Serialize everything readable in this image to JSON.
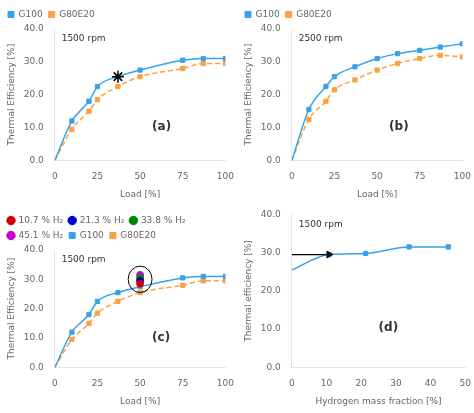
{
  "chart_data": [
    {
      "type": "line",
      "x_label": "Load [%]",
      "y_label": "Thermal Efficiency [%]",
      "annotations": [
        "1500 rpm",
        "(a)"
      ],
      "xlim": [
        0,
        100
      ],
      "xticks": [
        0,
        25,
        50,
        75,
        100
      ],
      "ylim": [
        0,
        40
      ],
      "yticks": [
        {
          "value": 0,
          "label": "0.0"
        },
        {
          "value": 10.0,
          "label": "10.0"
        },
        {
          "value": 20.0,
          "label": "20.0"
        },
        {
          "value": 30.0,
          "label": "30.0"
        },
        {
          "value": 40.0,
          "label": "40.0"
        }
      ],
      "grid": false,
      "legend": "upper left",
      "series": [
        {
          "name": "G100",
          "color": "#36a2eb",
          "line_style": "solid",
          "marker": "square",
          "x": [
            0,
            10,
            20,
            25,
            37,
            50,
            75,
            87,
            100
          ],
          "values": [
            0.0,
            12.0,
            18.0,
            22.5,
            25.5,
            27.5,
            30.5,
            31.0,
            31.0
          ],
          "marker_x": [
            10,
            20,
            25,
            37,
            50,
            75,
            87,
            100
          ],
          "marker_values": [
            12.0,
            18.0,
            22.5,
            25.5,
            27.5,
            30.5,
            31.0,
            31.0
          ]
        },
        {
          "name": "G80E20",
          "color": "#ff9f40",
          "line_style": "dashed",
          "marker": "square",
          "x": [
            0,
            10,
            20,
            25,
            37,
            50,
            75,
            87,
            100
          ],
          "values": [
            0.0,
            9.5,
            15.0,
            18.5,
            22.5,
            25.5,
            28.0,
            29.5,
            29.5
          ],
          "marker_x": [
            10,
            20,
            25,
            37,
            50,
            75,
            87,
            100
          ],
          "marker_values": [
            9.5,
            15.0,
            18.5,
            22.5,
            25.5,
            28.0,
            29.5,
            29.5
          ]
        }
      ],
      "cross": {
        "x": 37,
        "y": 25.5,
        "marker": "star",
        "color": "#000000"
      }
    },
    {
      "type": "line",
      "x_label": "Load [%]",
      "y_label": "Thermal Efficiency [%]",
      "annotations": [
        "2500 rpm",
        "(b)"
      ],
      "xlim": [
        0,
        100
      ],
      "xticks": [
        0,
        25,
        50,
        75,
        100
      ],
      "ylim": [
        0,
        40
      ],
      "yticks": [
        {
          "value": 0,
          "label": "0.0"
        },
        {
          "value": 10.0,
          "label": "10.0"
        },
        {
          "value": 20.0,
          "label": "20.0"
        },
        {
          "value": 30.0,
          "label": "30.0"
        },
        {
          "value": 40.0,
          "label": "40.0"
        }
      ],
      "grid": false,
      "legend": "upper left",
      "series": [
        {
          "name": "G100",
          "color": "#36a2eb",
          "line_style": "solid",
          "marker": "square",
          "x": [
            0,
            10,
            20,
            25,
            37,
            50,
            62,
            75,
            87,
            100
          ],
          "values": [
            0.0,
            15.5,
            22.5,
            25.5,
            28.5,
            31.0,
            32.5,
            33.5,
            34.5,
            35.5
          ],
          "marker_x": [
            10,
            20,
            25,
            37,
            50,
            62,
            75,
            87,
            100
          ],
          "marker_values": [
            15.5,
            22.5,
            25.5,
            28.5,
            31.0,
            32.5,
            33.5,
            34.5,
            35.5
          ]
        },
        {
          "name": "G80E20",
          "color": "#ff9f40",
          "line_style": "dashed",
          "marker": "square",
          "x": [
            0,
            10,
            20,
            25,
            37,
            50,
            62,
            75,
            87,
            100
          ],
          "values": [
            0.0,
            12.5,
            18.0,
            21.5,
            24.5,
            27.5,
            29.5,
            31.0,
            32.0,
            31.5
          ],
          "marker_x": [
            10,
            20,
            25,
            37,
            50,
            62,
            75,
            87,
            100
          ],
          "marker_values": [
            12.5,
            18.0,
            21.5,
            24.5,
            27.5,
            29.5,
            31.0,
            32.0,
            31.5
          ]
        }
      ]
    },
    {
      "type": "line",
      "x_label": "Load [%]",
      "y_label": "Thermal Efficiency [%]",
      "annotations": [
        "1500 rpm",
        "(c)"
      ],
      "xlim": [
        0,
        100
      ],
      "xticks": [
        0,
        25,
        50,
        75,
        100
      ],
      "ylim": [
        0,
        40
      ],
      "yticks": [
        {
          "value": 0,
          "label": "0.0"
        },
        {
          "value": 10.0,
          "label": "10.0"
        },
        {
          "value": 20.0,
          "label": "20.0"
        },
        {
          "value": 30.0,
          "label": "30.0"
        },
        {
          "value": 40.0,
          "label": "40.0"
        }
      ],
      "grid": false,
      "legend": "upper left",
      "series": [
        {
          "name": "G100",
          "color": "#36a2eb",
          "line_style": "solid",
          "marker": "square",
          "x": [
            0,
            10,
            20,
            25,
            37,
            50,
            75,
            87,
            100
          ],
          "values": [
            0.0,
            12.0,
            18.0,
            22.5,
            25.5,
            27.5,
            30.5,
            31.0,
            31.0
          ],
          "marker_x": [
            10,
            20,
            25,
            37,
            50,
            75,
            87,
            100
          ],
          "marker_values": [
            12.0,
            18.0,
            22.5,
            25.5,
            27.5,
            30.5,
            31.0,
            31.0
          ]
        },
        {
          "name": "G80E20",
          "color": "#ff9f40",
          "line_style": "dashed",
          "marker": "square",
          "x": [
            0,
            10,
            20,
            25,
            37,
            50,
            75,
            87,
            100
          ],
          "values": [
            0.0,
            9.5,
            15.0,
            18.5,
            22.5,
            25.5,
            28.0,
            29.5,
            29.5
          ],
          "marker_x": [
            10,
            20,
            25,
            37,
            50,
            75,
            87,
            100
          ],
          "marker_values": [
            9.5,
            15.0,
            18.5,
            22.5,
            25.5,
            28.0,
            29.5,
            29.5
          ]
        },
        {
          "name": "10.7 % H₂",
          "type": "scatter",
          "marker": "circle",
          "color": "#cc0000",
          "x": [
            50
          ],
          "values": [
            28.5
          ]
        },
        {
          "name": "21.3 % H₂",
          "type": "scatter",
          "marker": "circle",
          "color": "#0000cc",
          "x": [
            50
          ],
          "values": [
            29.5
          ]
        },
        {
          "name": "33.8 % H₂",
          "type": "scatter",
          "marker": "circle",
          "color": "#008800",
          "x": [
            50
          ],
          "values": [
            30.5
          ]
        },
        {
          "name": "45.1 % H₂",
          "type": "scatter",
          "marker": "circle",
          "color": "#cc00cc",
          "x": [
            50
          ],
          "values": [
            31.5
          ]
        }
      ],
      "ellipse": {
        "x": 50,
        "y": 30.0,
        "width": 14,
        "height": 9,
        "color": "#000000"
      }
    },
    {
      "type": "line",
      "x_label": "Hydrogen mass fraction [%]",
      "y_label": "Thermal efficiency [%]",
      "annotations": [
        "1500 rpm",
        "(d)"
      ],
      "xlim": [
        0,
        50
      ],
      "xticks": [
        0,
        10,
        20,
        30,
        40,
        50
      ],
      "ylim": [
        0,
        40
      ],
      "yticks": [
        {
          "value": 0,
          "label": "0.0"
        },
        {
          "value": 10.0,
          "label": "10.0"
        },
        {
          "value": 20.0,
          "label": "20.0"
        },
        {
          "value": 30.0,
          "label": "30.0"
        },
        {
          "value": 40.0,
          "label": "40.0"
        }
      ],
      "grid": false,
      "series": [
        {
          "color": "#36a2eb",
          "line_style": "solid",
          "marker": "square",
          "x": [
            0,
            10.7,
            21.3,
            33.8,
            45.1
          ],
          "values": [
            25.5,
            29.5,
            29.8,
            31.5,
            31.5
          ],
          "marker_x": [
            10.7,
            21.3,
            33.8,
            45.1
          ],
          "marker_values": [
            29.5,
            29.8,
            31.5,
            31.5
          ]
        }
      ],
      "hline": {
        "y": 29.5,
        "xmin": 0,
        "xmax": 10.7,
        "color": "#000000"
      },
      "triangle": {
        "x": 10.7,
        "y": 29.5,
        "marker": "triangle_right",
        "color": "#111111"
      }
    }
  ]
}
